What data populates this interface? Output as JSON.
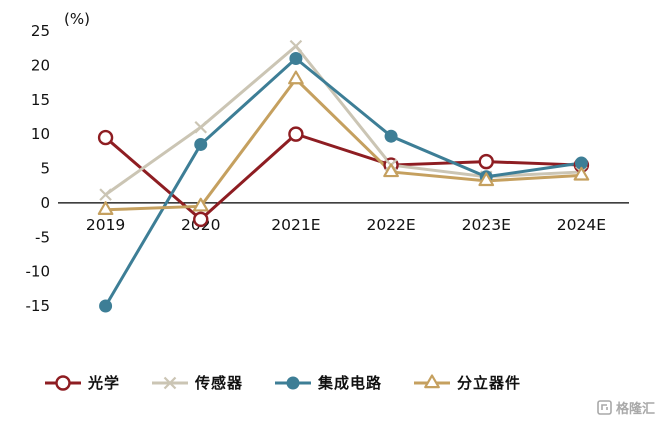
{
  "chart_data": {
    "type": "line",
    "title": "",
    "unit_label": "(%)",
    "categories": [
      "2019",
      "2020",
      "2021E",
      "2022E",
      "2023E",
      "2024E"
    ],
    "y_ticks": [
      25,
      20,
      15,
      10,
      5,
      0,
      -5,
      -10,
      -15
    ],
    "ylim": [
      -15,
      25
    ],
    "grid": false,
    "legend_position": "bottom",
    "series": [
      {
        "name": "光学",
        "color": "#8E1D22",
        "marker": "open-circle",
        "values": [
          9.5,
          -2.4,
          10.0,
          5.5,
          6.0,
          5.5
        ]
      },
      {
        "name": "传感器",
        "color": "#CBC5B4",
        "marker": "x-cross",
        "values": [
          1.2,
          11.0,
          22.8,
          5.5,
          3.8,
          4.5
        ]
      },
      {
        "name": "集成电路",
        "color": "#3D7E96",
        "marker": "filled-circle",
        "values": [
          -15.0,
          8.5,
          21.0,
          9.7,
          3.8,
          5.8
        ]
      },
      {
        "name": "分立器件",
        "color": "#C5A05F",
        "marker": "open-triangle",
        "values": [
          -1.0,
          -0.5,
          18.0,
          4.5,
          3.2,
          4.0
        ]
      }
    ]
  },
  "watermark": {
    "text": "格隆汇"
  }
}
